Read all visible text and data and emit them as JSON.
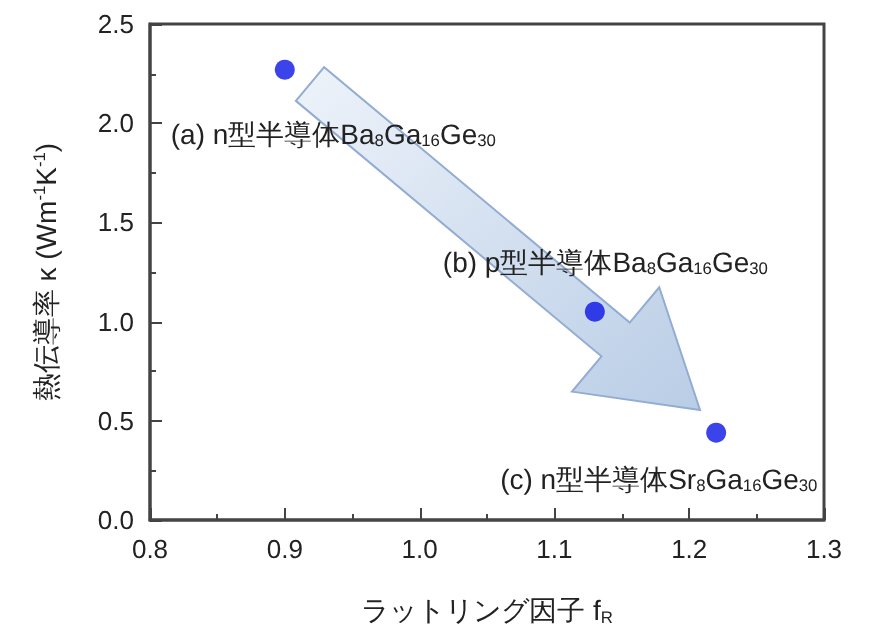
{
  "chart_data": {
    "type": "scatter",
    "xlabel": "ラットリング因子 f$_{R}$",
    "ylabel": "熱伝導率 κ (Wm$^{-1}$K$^{-1}$)",
    "x": [
      0.9,
      1.13,
      1.22
    ],
    "series": [
      {
        "color": "#0a14e6",
        "values": [
          2.27,
          1.05,
          0.44
        ]
      }
    ],
    "xlim": [
      0.8,
      1.3
    ],
    "xticks": [
      0.8,
      0.9,
      {
        "value": 1,
        "label": "1.0"
      },
      1.1,
      1.2,
      1.3
    ],
    "ylim": [
      0,
      2.5
    ],
    "yticks": [
      {
        "value": 0,
        "label": "0.0"
      },
      0.5,
      {
        "value": 1,
        "label": "1.0"
      },
      1.5,
      {
        "value": 2,
        "label": "2.0"
      },
      2.5
    ],
    "marker": "circle",
    "grid": false,
    "annotations": [
      {
        "text": "(a) n型半導体Ba$_{8}$Ga$_{16}$Ge$_{30}$",
        "x": 0.9,
        "y": 2.27
      },
      {
        "text": "(b) p型半導体Ba$_{8}$Ga$_{16}$Ge$_{30}$",
        "x": 1.13,
        "y": 1.05
      },
      {
        "text": "(c) n型半導体Sr$_{8}$Ga$_{16}$Ge$_{30}$",
        "x": 1.22,
        "y": 0.44
      }
    ]
  }
}
